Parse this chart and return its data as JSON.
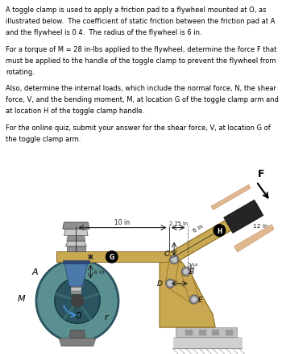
{
  "text_lines": [
    "A toggle clamp is used to apply a friction pad to a flywheel mounted at O, as",
    "illustrated below.  The coefficient of static friction between the friction pad at A",
    "and the flywheel is 0.4.  The radius of the flywheel is 6 in.",
    "",
    "For a torque of M = 28 in-lbs applied to the flywheel, determine the force F that",
    "must be applied to the handle of the toggle clamp to prevent the flywheel from",
    "rotating.",
    "",
    "Also, determine the internal loads, which include the normal force, N, the shear",
    "force, V, and the bending moment, M, at location G of the toggle clamp arm and",
    "at location H of the toggle clamp handle.",
    "",
    "For the online quiz, submit your answer for the shear force, V, at location G of",
    "the toggle clamp arm."
  ],
  "bg": "#ffffff",
  "gold": "#c8a850",
  "gold_dark": "#8a6820",
  "gold_edge": "#706030",
  "teal": "#5a9090",
  "teal_dark": "#2a5560",
  "teal_rim": "#3a6a70",
  "steel": "#909090",
  "steel_light": "#c8c8c8",
  "steel_dark": "#505050",
  "blue_pad": "#4a7aaa",
  "blue_pad_dark": "#2a4a7a",
  "hand_skin": "#e0b890",
  "hand_dark": "#c89870",
  "handle_black": "#252525",
  "dim_col": "#222222",
  "label_col": "#000000",
  "white": "#ffffff"
}
